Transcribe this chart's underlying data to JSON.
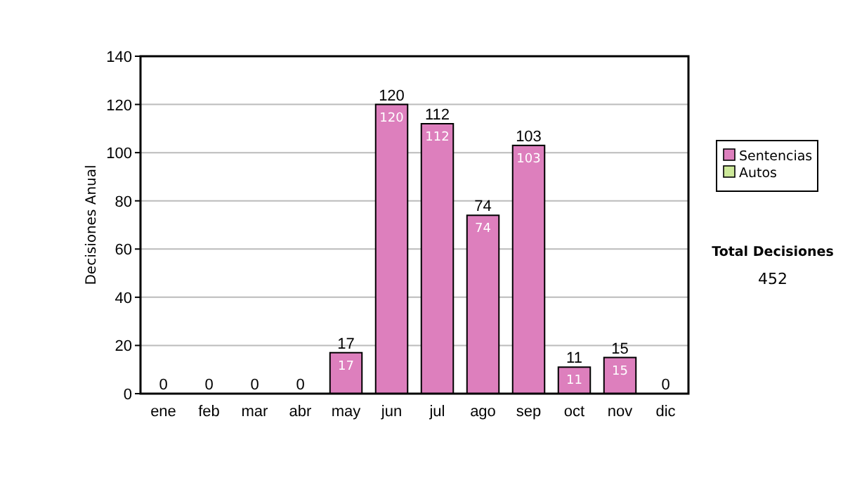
{
  "chart_data": {
    "type": "bar",
    "stacked": true,
    "ylabel": "Decisiones Anual",
    "categories": [
      "ene",
      "feb",
      "mar",
      "abr",
      "may",
      "jun",
      "jul",
      "ago",
      "sep",
      "oct",
      "nov",
      "dic"
    ],
    "series": [
      {
        "name": "Sentencias",
        "color": "#dd7fbd",
        "values": [
          0,
          0,
          0,
          0,
          17,
          120,
          112,
          74,
          103,
          11,
          15,
          0
        ],
        "value_labels": [
          null,
          null,
          null,
          null,
          "17",
          "120",
          "112",
          "74",
          "103",
          "11",
          "15",
          null
        ]
      },
      {
        "name": "Autos",
        "color": "#cce899",
        "values": [
          0,
          0,
          0,
          0,
          0,
          0,
          0,
          0,
          0,
          0,
          0,
          0
        ]
      }
    ],
    "totals": [
      "0",
      "0",
      "0",
      "0",
      "17",
      "120",
      "112",
      "74",
      "103",
      "11",
      "15",
      "0"
    ],
    "ylim": [
      0,
      140
    ],
    "yticks": [
      0,
      20,
      40,
      60,
      80,
      100,
      120,
      140
    ],
    "grid": "y",
    "legend": "right",
    "annotations": [
      "Total Decisiones",
      "452"
    ]
  }
}
